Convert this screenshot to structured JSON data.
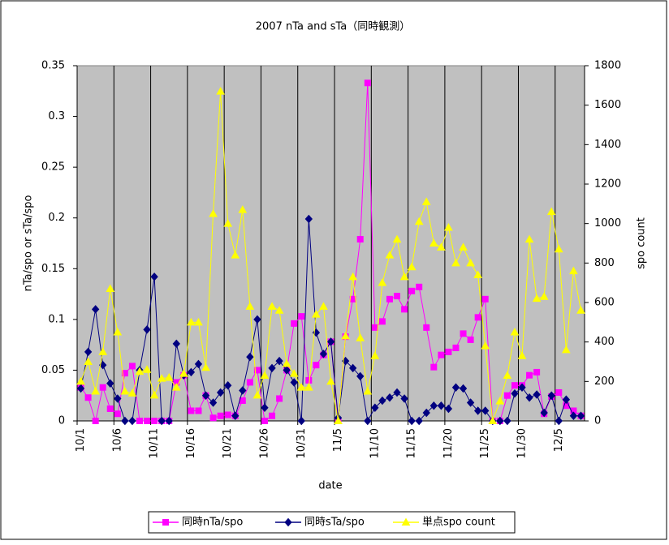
{
  "chart_data": {
    "type": "line",
    "title": "2007 nTa and sTa（同時観測）",
    "x_label": "date",
    "y_label": "nTa/spo or sTa/spo",
    "y2_label": "spo count",
    "categories": [
      "10/1",
      null,
      null,
      null,
      null,
      "10/6",
      null,
      null,
      null,
      null,
      "10/11",
      null,
      null,
      null,
      null,
      "10/16",
      null,
      null,
      null,
      null,
      "10/21",
      null,
      null,
      null,
      null,
      "10/26",
      null,
      null,
      null,
      null,
      "10/31",
      null,
      null,
      null,
      null,
      "11/5",
      null,
      null,
      null,
      null,
      "11/10",
      null,
      null,
      null,
      null,
      "11/15",
      null,
      null,
      null,
      null,
      "11/20",
      null,
      null,
      null,
      null,
      "11/25",
      null,
      null,
      null,
      null,
      "11/30",
      null,
      null,
      null,
      null,
      "12/5",
      null,
      null,
      null
    ],
    "ylim": [
      0,
      0.35
    ],
    "yticks": [
      0,
      0.05,
      0.1,
      0.15,
      0.2,
      0.25,
      0.3,
      0.35
    ],
    "y2lim": [
      0,
      1800
    ],
    "y2ticks": [
      0,
      200,
      400,
      600,
      800,
      1000,
      1200,
      1400,
      1600,
      1800
    ],
    "grid": "x",
    "legend": "bottom",
    "background": "#c0c0c0",
    "series": [
      {
        "name": "同時nTa/spo",
        "color": "#ff00ff",
        "marker": "square",
        "values": [
          0.033,
          0.023,
          0,
          0.033,
          0.012,
          0.007,
          0.047,
          0.054,
          0,
          0,
          0,
          0,
          0,
          0.038,
          0.045,
          0.01,
          0.01,
          0.025,
          0.003,
          0.005,
          0.006,
          0.005,
          0.02,
          0.038,
          0.05,
          0,
          0.005,
          0.022,
          0.05,
          0.096,
          0.103,
          0.04,
          0.055,
          0.065,
          0.078,
          0,
          0.083,
          0.12,
          0.179,
          0.333,
          0.092,
          0.098,
          0.12,
          0.123,
          0.11,
          0.128,
          0.132,
          0.092,
          0.053,
          0.065,
          0.068,
          0.072,
          0.086,
          0.08,
          0.102,
          0.12,
          0,
          0,
          0.025,
          0.035,
          0.035,
          0.045,
          0.048,
          0.007,
          0.024,
          0.028,
          0.015,
          0.01,
          0.005
        ]
      },
      {
        "name": "同時sTa/spo",
        "color": "#000080",
        "marker": "diamond",
        "values": [
          0.032,
          0.068,
          0.11,
          0.055,
          0.037,
          0.022,
          0,
          0,
          0.05,
          0.09,
          0.142,
          0,
          0,
          0.076,
          0.045,
          0.048,
          0.056,
          0.025,
          0.018,
          0.028,
          0.035,
          0.005,
          0.03,
          0.063,
          0.1,
          0.013,
          0.052,
          0.059,
          0.05,
          0.038,
          0,
          0.199,
          0.087,
          0.066,
          0.078,
          0.003,
          0.059,
          0.052,
          0.044,
          0,
          0.013,
          0.02,
          0.023,
          0.028,
          0.022,
          0,
          0,
          0.008,
          0.015,
          0.015,
          0.012,
          0.033,
          0.032,
          0.018,
          0.01,
          0.01,
          0,
          0,
          0,
          0.027,
          0.033,
          0.023,
          0.026,
          0.008,
          0.025,
          0,
          0.021,
          0.005,
          0.005
        ]
      },
      {
        "name": "単点spo count",
        "color": "#ffff00",
        "marker": "triangle",
        "axis": "y2",
        "values": [
          200,
          300,
          150,
          350,
          670,
          450,
          150,
          140,
          250,
          260,
          130,
          215,
          220,
          170,
          240,
          500,
          500,
          270,
          1050,
          1670,
          1000,
          840,
          1070,
          580,
          130,
          230,
          580,
          560,
          290,
          240,
          170,
          170,
          540,
          580,
          200,
          0,
          430,
          730,
          420,
          150,
          330,
          700,
          840,
          920,
          730,
          780,
          1010,
          1110,
          900,
          880,
          980,
          800,
          880,
          800,
          740,
          380,
          0,
          100,
          230,
          450,
          330,
          920,
          620,
          630,
          1060,
          870,
          360,
          760,
          560
        ]
      }
    ]
  }
}
